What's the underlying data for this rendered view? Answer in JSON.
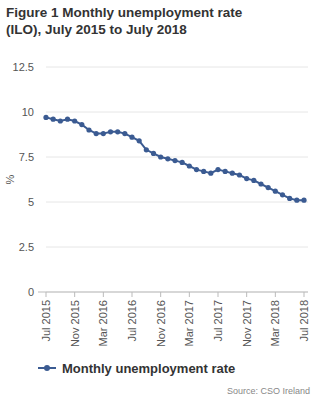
{
  "chart_data": {
    "type": "line",
    "title": "Figure 1 Monthly unemployment rate (ILO), July 2015 to July 2018",
    "y_label": "%",
    "source": "Source: CSO Ireland",
    "categories": [
      "Jul 2015",
      null,
      null,
      null,
      "Nov 2015",
      null,
      null,
      null,
      "Mar 2016",
      null,
      null,
      null,
      "Jul 2016",
      null,
      null,
      null,
      "Nov 2016",
      null,
      null,
      null,
      "Mar 2017",
      null,
      null,
      null,
      "Jul 2017",
      null,
      null,
      null,
      "Nov 2017",
      null,
      null,
      null,
      "Mar 2018",
      null,
      null,
      null,
      "Jul 2018"
    ],
    "series": [
      {
        "name": "Monthly unemployment rate",
        "color": "#3b5b92",
        "marker": "circle",
        "values": [
          9.7,
          9.6,
          9.5,
          9.6,
          9.5,
          9.3,
          9.0,
          8.8,
          8.8,
          8.9,
          8.9,
          8.8,
          8.6,
          8.4,
          7.9,
          7.7,
          7.5,
          7.4,
          7.3,
          7.2,
          7.0,
          6.8,
          6.7,
          6.6,
          6.8,
          6.7,
          6.6,
          6.5,
          6.3,
          6.2,
          6.0,
          5.8,
          5.6,
          5.4,
          5.2,
          5.1,
          5.1
        ]
      }
    ],
    "ylim": [
      0,
      12.5
    ],
    "yticks": [
      0,
      2.5,
      5,
      7.5,
      10,
      12.5
    ],
    "grid": true,
    "legend": "bottom"
  }
}
